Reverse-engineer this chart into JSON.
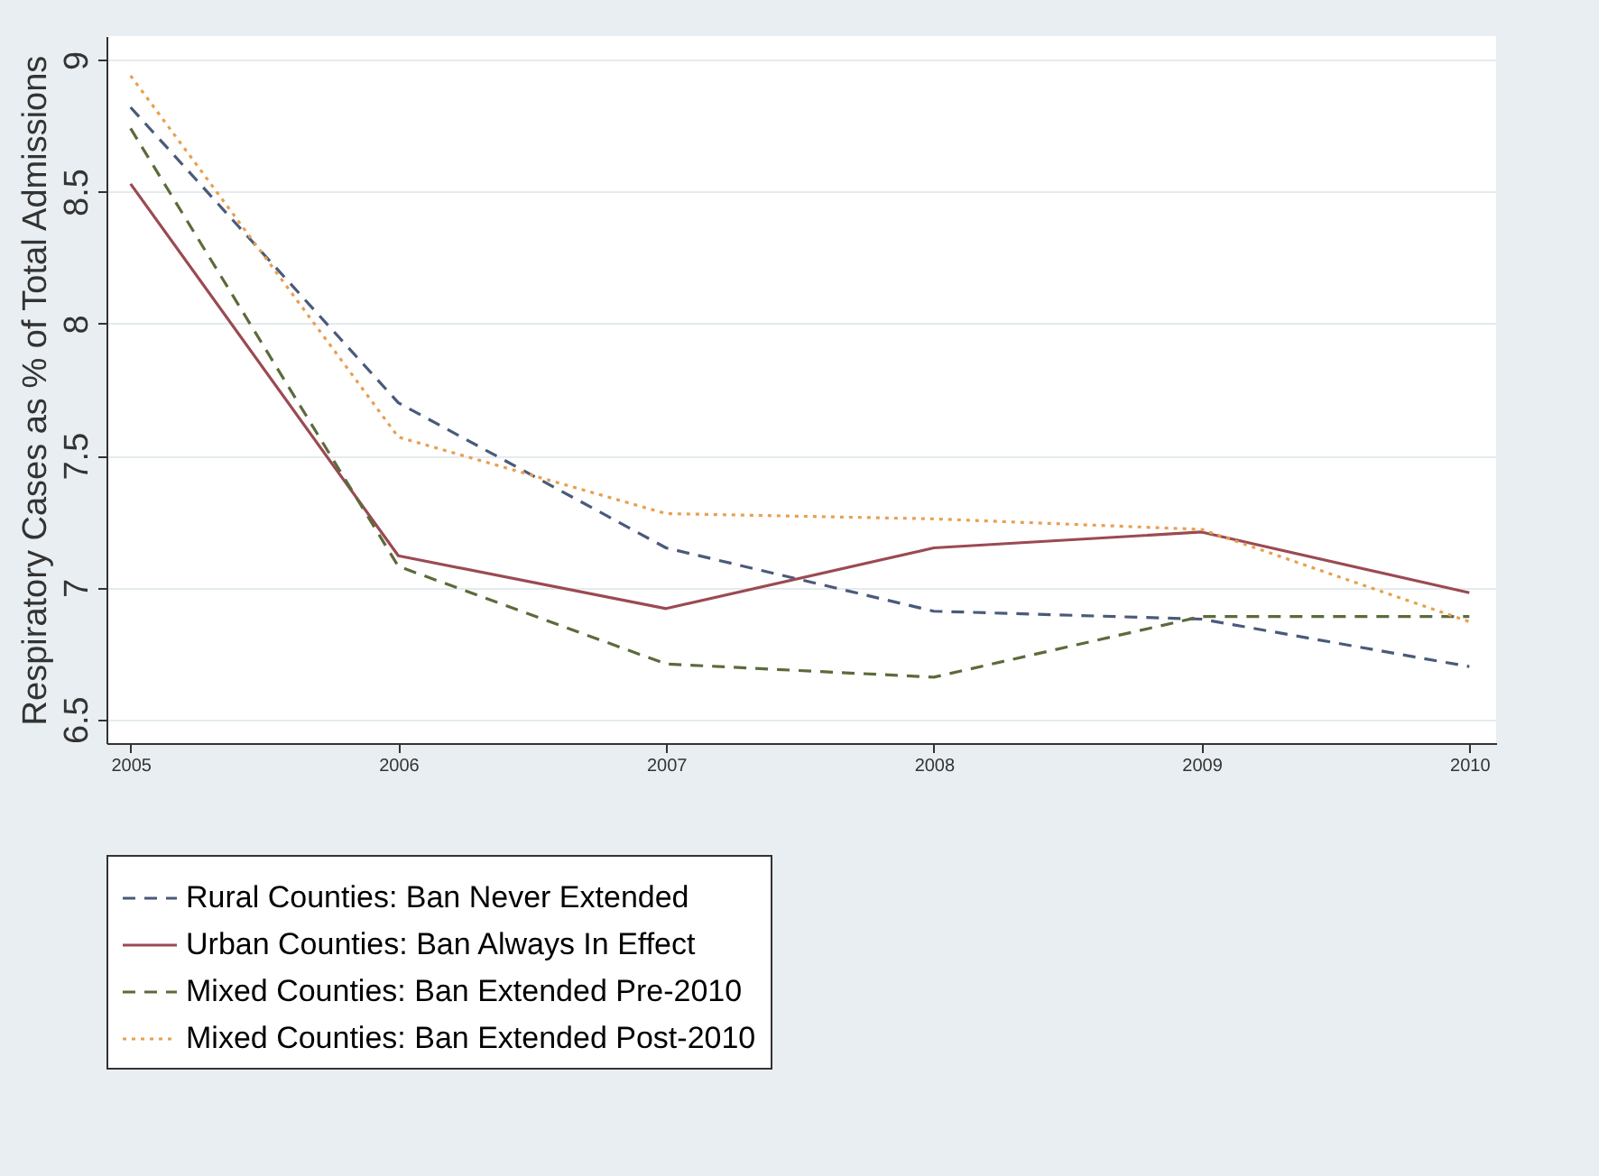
{
  "chart_data": {
    "type": "line",
    "ylabel": "Respiratory Cases as % of Total Admissions",
    "x": [
      2005,
      2006,
      2007,
      2008,
      2009,
      2010
    ],
    "xlim": [
      2004.91,
      2010.1
    ],
    "xticks": [
      2005,
      2006,
      2007,
      2008,
      2009,
      2010
    ],
    "ylim": [
      6.41,
      9.09
    ],
    "yticks": [
      6.5,
      7,
      7.5,
      8,
      8.5,
      9
    ],
    "grid": "y",
    "legend": "bottom",
    "marker": "none",
    "series": [
      {
        "name": "Rural Counties: Ban Never Extended",
        "color": "#4a5a7a",
        "line_style": "dashed",
        "values": [
          8.82,
          7.7,
          7.15,
          6.91,
          6.88,
          6.7
        ]
      },
      {
        "name": "Urban Counties: Ban Always In Effect",
        "color": "#9b4a52",
        "line_style": "solid",
        "values": [
          8.53,
          7.12,
          6.92,
          7.15,
          7.21,
          6.98
        ]
      },
      {
        "name": "Mixed Counties: Ban Extended Pre-2010",
        "color": "#5b6b3a",
        "line_style": "dashed",
        "values": [
          8.74,
          7.08,
          6.71,
          6.66,
          6.89,
          6.89
        ]
      },
      {
        "name": "Mixed Counties: Ban Extended Post-2010",
        "color": "#e8a050",
        "line_style": "dotted",
        "values": [
          8.94,
          7.57,
          7.28,
          7.26,
          7.22,
          6.87
        ]
      }
    ]
  }
}
